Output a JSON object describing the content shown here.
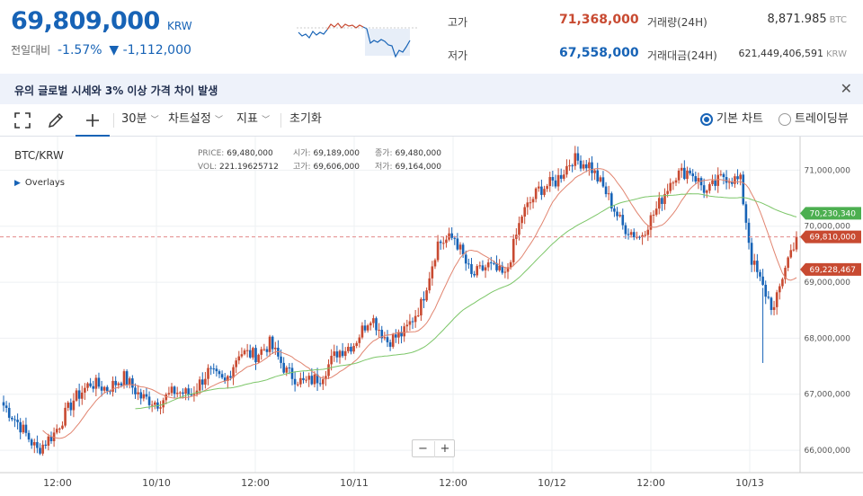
{
  "ticker": {
    "price": "69,809,000",
    "unit": "KRW",
    "change_label": "전일대비",
    "change_pct": "-1.57%",
    "change_amt": "▼ -1,112,000"
  },
  "stats": {
    "high_label": "고가",
    "high_value": "71,368,000",
    "low_label": "저가",
    "low_value": "67,558,000",
    "volume_label": "거래량(24H)",
    "volume_value": "8,871.985",
    "volume_unit": "BTC",
    "amount_label": "거래대금(24H)",
    "amount_value": "621,449,406,591",
    "amount_unit": "KRW"
  },
  "notice": {
    "text": "유의   글로벌 시세와 3% 이상 가격 차이 발생",
    "close": "✕"
  },
  "toolbar": {
    "interval": "30분",
    "chart_settings": "차트설정",
    "indicators": "지표",
    "reset": "초기화",
    "basic_chart": "기본 차트",
    "tradingview": "트레이딩뷰"
  },
  "chart": {
    "pair": "BTC/KRW",
    "overlays": "Overlays",
    "info": {
      "price_label": "PRICE:",
      "price": "69,480,000",
      "vol_label": "VOL:",
      "vol": "221.19625712",
      "open_label": "시가:",
      "open": "69,189,000",
      "high_label": "고가:",
      "high": "69,606,000",
      "close_label": "종가:",
      "close": "69,480,000",
      "low_label": "저가:",
      "low": "69,164,000"
    },
    "markers": {
      "ma_long": "70,230,340",
      "current": "69,810,000",
      "ma_short": "69,228,467"
    },
    "zoom_out": "−",
    "zoom_in": "+"
  },
  "chart_data": {
    "type": "candlestick",
    "y_ticks": [
      "71,000,000",
      "70,000,000",
      "69,000,000",
      "68,000,000",
      "67,000,000",
      "66,000,000"
    ],
    "y_tick_values": [
      71000000,
      70000000,
      69000000,
      68000000,
      67000000,
      66000000
    ],
    "ylim": [
      65600000,
      71600000
    ],
    "x_ticks": [
      "12:00",
      "10/10",
      "12:00",
      "10/11",
      "12:00",
      "10/12",
      "12:00",
      "10/13"
    ],
    "interval": "30분",
    "current_price": 69810000,
    "anchors": [
      [
        0,
        66800000
      ],
      [
        5,
        66500000
      ],
      [
        12,
        66000000
      ],
      [
        18,
        66300000
      ],
      [
        25,
        66900000
      ],
      [
        31,
        67200000
      ],
      [
        37,
        67100000
      ],
      [
        43,
        67300000
      ],
      [
        49,
        66950000
      ],
      [
        55,
        66850000
      ],
      [
        61,
        67050000
      ],
      [
        67,
        67000000
      ],
      [
        73,
        67400000
      ],
      [
        79,
        67200000
      ],
      [
        84,
        67750000
      ],
      [
        90,
        67700000
      ],
      [
        95,
        67900000
      ],
      [
        101,
        67400000
      ],
      [
        107,
        67200000
      ],
      [
        113,
        67300000
      ],
      [
        119,
        67750000
      ],
      [
        125,
        67900000
      ],
      [
        131,
        68400000
      ],
      [
        137,
        67950000
      ],
      [
        143,
        68100000
      ],
      [
        149,
        68600000
      ],
      [
        155,
        69700000
      ],
      [
        161,
        69800000
      ],
      [
        167,
        69100000
      ],
      [
        173,
        69300000
      ],
      [
        179,
        69100000
      ],
      [
        185,
        70200000
      ],
      [
        191,
        70650000
      ],
      [
        197,
        70800000
      ],
      [
        203,
        71200000
      ],
      [
        209,
        71100000
      ],
      [
        215,
        70600000
      ],
      [
        221,
        70000000
      ],
      [
        227,
        69800000
      ],
      [
        233,
        70300000
      ],
      [
        239,
        70900000
      ],
      [
        245,
        71000000
      ],
      [
        251,
        70600000
      ],
      [
        257,
        70900000
      ],
      [
        263,
        70800000
      ],
      [
        267,
        69400000
      ],
      [
        271,
        68900000
      ],
      [
        275,
        68500000
      ],
      [
        279,
        69300000
      ],
      [
        283,
        69810000
      ]
    ]
  },
  "colors": {
    "up": "#c84a31",
    "down": "#1763b6",
    "ma_short": "#e1846f",
    "ma_long": "#7cc668",
    "accent": "#1763b6"
  },
  "icons": [
    "fullscreen-icon",
    "pencil-icon",
    "crosshair-icon",
    "chevron-down-icon",
    "close-icon"
  ]
}
